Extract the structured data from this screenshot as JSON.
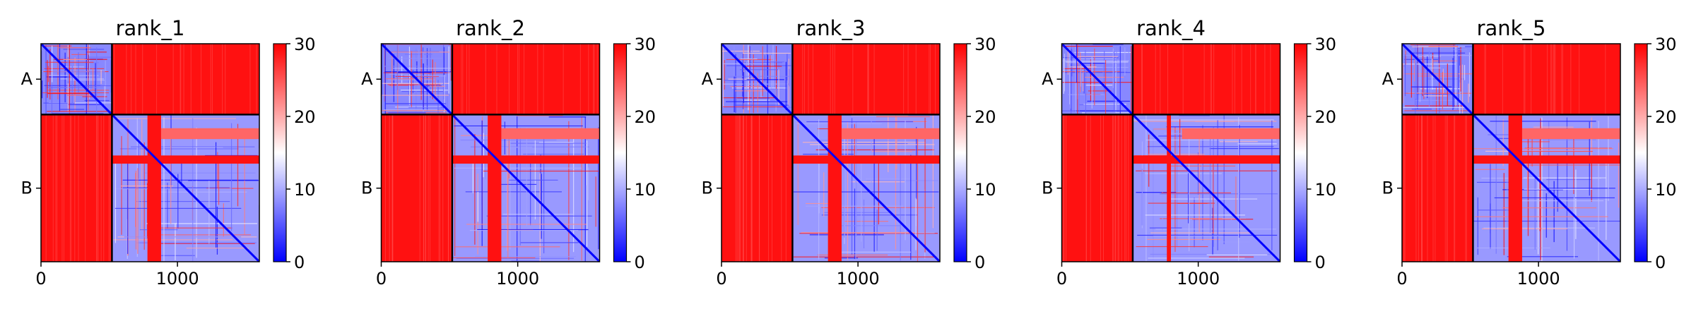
{
  "figure": {
    "background": "#ffffff"
  },
  "chart_data": [
    {
      "type": "heatmap",
      "title": "rank_1",
      "xlabel": "",
      "ylabel": "",
      "x_ticks": [
        0,
        1000
      ],
      "xlim": [
        0,
        1600
      ],
      "y_ticks": [
        {
          "pos": 260,
          "label": "A"
        },
        {
          "pos": 1060,
          "label": "B"
        }
      ],
      "ylim": [
        1600,
        0
      ],
      "chain_boundary": 520,
      "colorbar": {
        "min": 0,
        "max": 30,
        "ticks": [
          0,
          10,
          20,
          30
        ],
        "colormap": "bwr"
      },
      "regions": [
        {
          "name": "A-A",
          "x": [
            0,
            520
          ],
          "y": [
            0,
            520
          ],
          "level": 8
        },
        {
          "name": "A-B",
          "x": [
            520,
            1600
          ],
          "y": [
            0,
            520
          ],
          "level": 29
        },
        {
          "name": "B-A",
          "x": [
            0,
            520
          ],
          "y": [
            520,
            1600
          ],
          "level": 29
        },
        {
          "name": "B-B",
          "x": [
            520,
            1600
          ],
          "y": [
            520,
            1600
          ],
          "level": 9
        }
      ],
      "bands": [
        {
          "orientation": "vertical",
          "range": [
            780,
            880
          ],
          "y": [
            520,
            1600
          ],
          "level": 29
        },
        {
          "orientation": "horizontal",
          "range": [
            820,
            880
          ],
          "x": [
            520,
            1600
          ],
          "level": 29
        },
        {
          "orientation": "horizontal",
          "range": [
            620,
            700
          ],
          "x": [
            880,
            1600
          ],
          "level": 24
        }
      ]
    },
    {
      "type": "heatmap",
      "title": "rank_2",
      "xlabel": "",
      "ylabel": "",
      "x_ticks": [
        0,
        1000
      ],
      "xlim": [
        0,
        1600
      ],
      "y_ticks": [
        {
          "pos": 260,
          "label": "A"
        },
        {
          "pos": 1060,
          "label": "B"
        }
      ],
      "ylim": [
        1600,
        0
      ],
      "chain_boundary": 520,
      "colorbar": {
        "min": 0,
        "max": 30,
        "ticks": [
          0,
          10,
          20,
          30
        ],
        "colormap": "bwr"
      },
      "regions": [
        {
          "name": "A-A",
          "x": [
            0,
            520
          ],
          "y": [
            0,
            520
          ],
          "level": 8
        },
        {
          "name": "A-B",
          "x": [
            520,
            1600
          ],
          "y": [
            0,
            520
          ],
          "level": 29
        },
        {
          "name": "B-A",
          "x": [
            0,
            520
          ],
          "y": [
            520,
            1600
          ],
          "level": 29
        },
        {
          "name": "B-B",
          "x": [
            520,
            1600
          ],
          "y": [
            520,
            1600
          ],
          "level": 9
        }
      ],
      "bands": [
        {
          "orientation": "vertical",
          "range": [
            780,
            880
          ],
          "y": [
            520,
            1600
          ],
          "level": 29
        },
        {
          "orientation": "horizontal",
          "range": [
            820,
            880
          ],
          "x": [
            520,
            1600
          ],
          "level": 29
        },
        {
          "orientation": "horizontal",
          "range": [
            620,
            700
          ],
          "x": [
            880,
            1600
          ],
          "level": 24
        }
      ]
    },
    {
      "type": "heatmap",
      "title": "rank_3",
      "xlabel": "",
      "ylabel": "",
      "x_ticks": [
        0,
        1000
      ],
      "xlim": [
        0,
        1600
      ],
      "y_ticks": [
        {
          "pos": 260,
          "label": "A"
        },
        {
          "pos": 1060,
          "label": "B"
        }
      ],
      "ylim": [
        1600,
        0
      ],
      "chain_boundary": 520,
      "colorbar": {
        "min": 0,
        "max": 30,
        "ticks": [
          0,
          10,
          20,
          30
        ],
        "colormap": "bwr"
      },
      "regions": [
        {
          "name": "A-A",
          "x": [
            0,
            520
          ],
          "y": [
            0,
            520
          ],
          "level": 8
        },
        {
          "name": "A-B",
          "x": [
            520,
            1600
          ],
          "y": [
            0,
            520
          ],
          "level": 29
        },
        {
          "name": "B-A",
          "x": [
            0,
            520
          ],
          "y": [
            520,
            1600
          ],
          "level": 29
        },
        {
          "name": "B-B",
          "x": [
            520,
            1600
          ],
          "y": [
            520,
            1600
          ],
          "level": 9
        }
      ],
      "bands": [
        {
          "orientation": "vertical",
          "range": [
            780,
            880
          ],
          "y": [
            520,
            1600
          ],
          "level": 29
        },
        {
          "orientation": "horizontal",
          "range": [
            820,
            880
          ],
          "x": [
            520,
            1600
          ],
          "level": 29
        },
        {
          "orientation": "horizontal",
          "range": [
            620,
            700
          ],
          "x": [
            880,
            1600
          ],
          "level": 24
        }
      ]
    },
    {
      "type": "heatmap",
      "title": "rank_4",
      "xlabel": "",
      "ylabel": "",
      "x_ticks": [
        0,
        1000
      ],
      "xlim": [
        0,
        1600
      ],
      "y_ticks": [
        {
          "pos": 260,
          "label": "A"
        },
        {
          "pos": 1060,
          "label": "B"
        }
      ],
      "ylim": [
        1600,
        0
      ],
      "chain_boundary": 520,
      "colorbar": {
        "min": 0,
        "max": 30,
        "ticks": [
          0,
          10,
          20,
          30
        ],
        "colormap": "bwr"
      },
      "regions": [
        {
          "name": "A-A",
          "x": [
            0,
            520
          ],
          "y": [
            0,
            520
          ],
          "level": 8
        },
        {
          "name": "A-B",
          "x": [
            520,
            1600
          ],
          "y": [
            0,
            520
          ],
          "level": 29
        },
        {
          "name": "B-A",
          "x": [
            0,
            520
          ],
          "y": [
            520,
            1600
          ],
          "level": 29
        },
        {
          "name": "B-B",
          "x": [
            520,
            1600
          ],
          "y": [
            520,
            1600
          ],
          "level": 9
        }
      ],
      "bands": [
        {
          "orientation": "vertical",
          "range": [
            770,
            800
          ],
          "y": [
            520,
            1600
          ],
          "level": 29
        },
        {
          "orientation": "horizontal",
          "range": [
            820,
            880
          ],
          "x": [
            520,
            1600
          ],
          "level": 29
        },
        {
          "orientation": "horizontal",
          "range": [
            620,
            700
          ],
          "x": [
            880,
            1600
          ],
          "level": 24
        }
      ]
    },
    {
      "type": "heatmap",
      "title": "rank_5",
      "xlabel": "",
      "ylabel": "",
      "x_ticks": [
        0,
        1000
      ],
      "xlim": [
        0,
        1600
      ],
      "y_ticks": [
        {
          "pos": 260,
          "label": "A"
        },
        {
          "pos": 1060,
          "label": "B"
        }
      ],
      "ylim": [
        1600,
        0
      ],
      "chain_boundary": 520,
      "colorbar": {
        "min": 0,
        "max": 30,
        "ticks": [
          0,
          10,
          20,
          30
        ],
        "colormap": "bwr"
      },
      "regions": [
        {
          "name": "A-A",
          "x": [
            0,
            520
          ],
          "y": [
            0,
            520
          ],
          "level": 8
        },
        {
          "name": "A-B",
          "x": [
            520,
            1600
          ],
          "y": [
            0,
            520
          ],
          "level": 29
        },
        {
          "name": "B-A",
          "x": [
            0,
            520
          ],
          "y": [
            520,
            1600
          ],
          "level": 29
        },
        {
          "name": "B-B",
          "x": [
            520,
            1600
          ],
          "y": [
            520,
            1600
          ],
          "level": 9
        }
      ],
      "bands": [
        {
          "orientation": "vertical",
          "range": [
            780,
            880
          ],
          "y": [
            520,
            1600
          ],
          "level": 29
        },
        {
          "orientation": "horizontal",
          "range": [
            820,
            880
          ],
          "x": [
            520,
            1600
          ],
          "level": 29
        },
        {
          "orientation": "horizontal",
          "range": [
            620,
            700
          ],
          "x": [
            880,
            1600
          ],
          "level": 24
        }
      ]
    }
  ]
}
